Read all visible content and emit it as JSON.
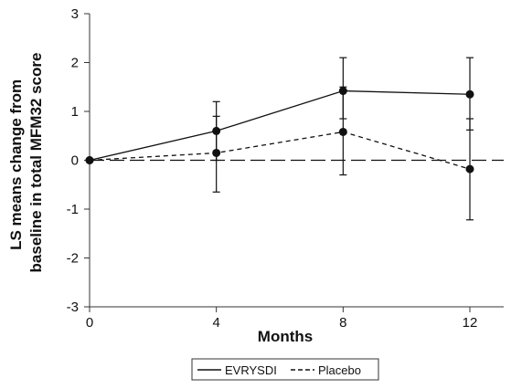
{
  "chart_data": {
    "type": "line",
    "title": "",
    "xlabel": "Months",
    "ylabel": [
      "LS means change from",
      "baseline in total MFM32 score"
    ],
    "x": [
      0,
      4,
      8,
      12
    ],
    "x_ticks": [
      "0",
      "4",
      "8",
      "12"
    ],
    "y_ticks": [
      "3",
      "2",
      "1",
      "0",
      "-1",
      "-2",
      "-3"
    ],
    "ylim": [
      -3,
      3
    ],
    "xlim": [
      0,
      13
    ],
    "grid": false,
    "reference_line": 0,
    "legend_position": "bottom-center",
    "series": [
      {
        "name": "EVRYSDI",
        "line_style": "solid",
        "values": [
          0,
          0.6,
          1.42,
          1.35
        ],
        "error_low": [
          0,
          0.0,
          0.85,
          0.62
        ],
        "error_high": [
          0,
          1.2,
          2.1,
          2.1
        ]
      },
      {
        "name": "Placebo",
        "line_style": "dashed",
        "values": [
          0,
          0.15,
          0.58,
          -0.18
        ],
        "error_low": [
          0,
          -0.65,
          -0.3,
          -1.22
        ],
        "error_high": [
          0,
          0.9,
          1.5,
          0.85
        ]
      }
    ],
    "colors": {
      "line": "#111111",
      "axis": "#333333"
    }
  }
}
